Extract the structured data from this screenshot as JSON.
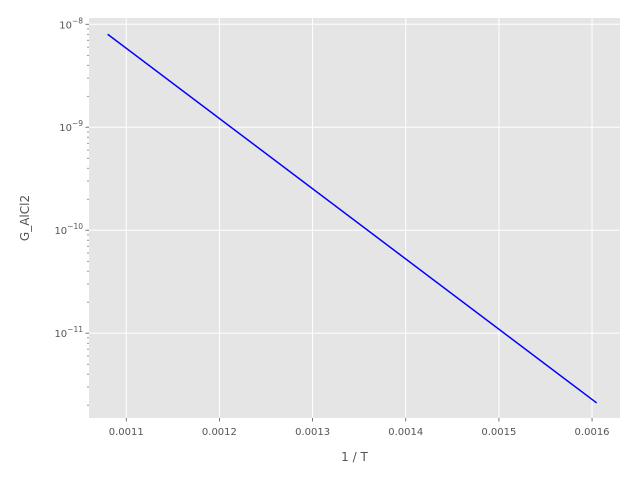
{
  "chart_data": {
    "type": "line",
    "title": "",
    "xlabel": "1 / T",
    "ylabel": "G_AlCl2",
    "xscale": "linear",
    "yscale": "log",
    "xlim": [
      0.00106,
      0.00163
    ],
    "ylim": [
      1.5e-12,
      1.15e-08
    ],
    "grid": true,
    "legend": "none",
    "background_color": "#e5e5e5",
    "line_color": "#0000ff",
    "x_ticks": [
      {
        "value": 0.0011,
        "label": "0.0011"
      },
      {
        "value": 0.0012,
        "label": "0.0012"
      },
      {
        "value": 0.0013,
        "label": "0.0013"
      },
      {
        "value": 0.0014,
        "label": "0.0014"
      },
      {
        "value": 0.0015,
        "label": "0.0015"
      },
      {
        "value": 0.0016,
        "label": "0.0016"
      }
    ],
    "y_ticks": [
      {
        "value": 1e-11,
        "base": "10",
        "exp": "−11"
      },
      {
        "value": 1e-10,
        "base": "10",
        "exp": "−10"
      },
      {
        "value": 1e-09,
        "base": "10",
        "exp": "−9"
      },
      {
        "value": 1e-08,
        "base": "10",
        "exp": "−8"
      }
    ],
    "series": [
      {
        "x": [
          0.00108,
          0.001605
        ],
        "y": [
          8e-09,
          2.1e-12
        ]
      }
    ]
  }
}
